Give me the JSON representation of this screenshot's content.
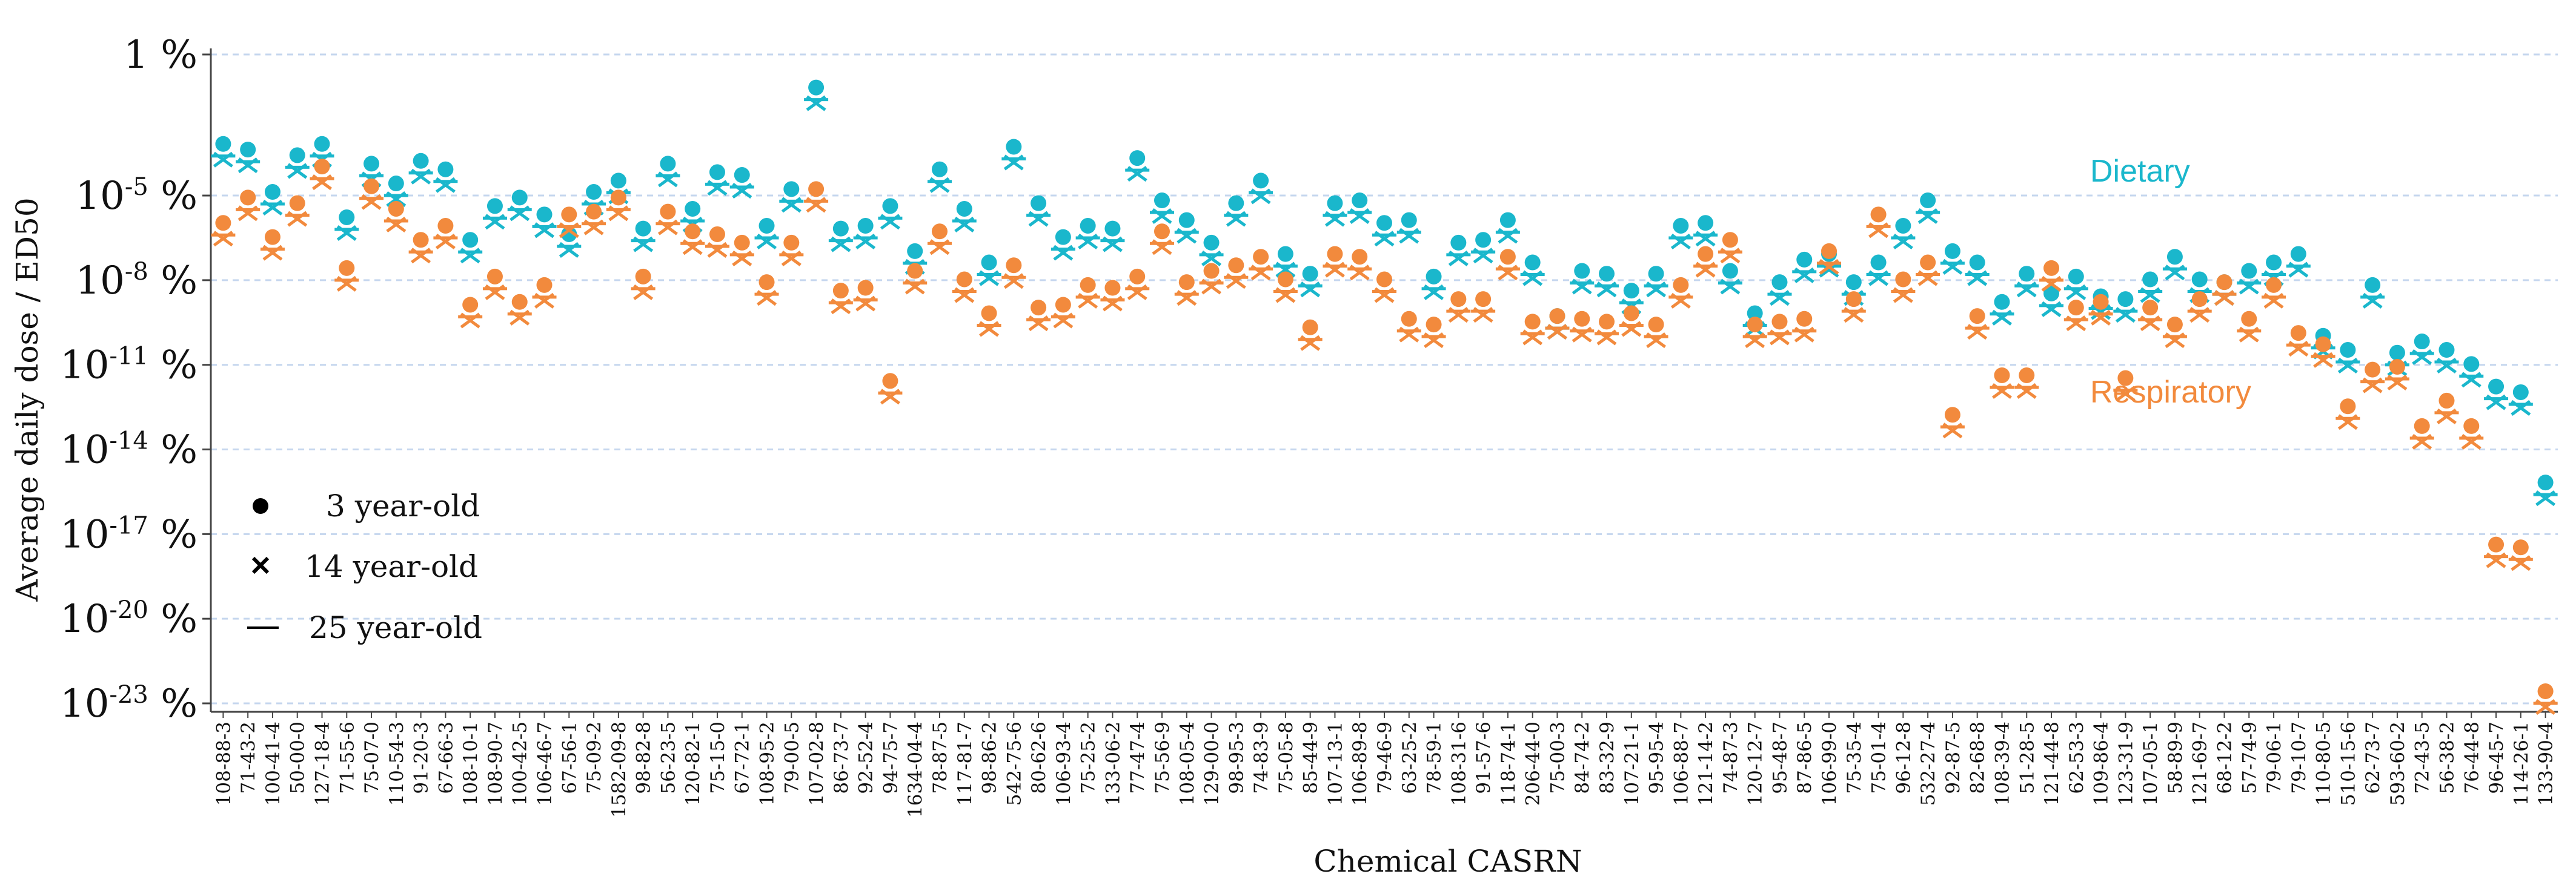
{
  "chart_data": {
    "type": "scatter",
    "title": "",
    "xlabel": "Chemical CASRN",
    "ylabel": "Average daily dose / ED50",
    "yscale": "log10",
    "ylim_exponent": [
      -23,
      0
    ],
    "y_ticks": [
      {
        "exp": 0,
        "label": "1 %"
      },
      {
        "exp": -5,
        "label": "10",
        "sup": "-5",
        "unit": " %"
      },
      {
        "exp": -8,
        "label": "10",
        "sup": "-8",
        "unit": " %"
      },
      {
        "exp": -11,
        "label": "10",
        "sup": "-11",
        "unit": " %"
      },
      {
        "exp": -14,
        "label": "10",
        "sup": "-14",
        "unit": " %"
      },
      {
        "exp": -17,
        "label": "10",
        "sup": "-17",
        "unit": " %"
      },
      {
        "exp": -20,
        "label": "10",
        "sup": "-20",
        "unit": " %"
      },
      {
        "exp": -23,
        "label": "10",
        "sup": "-23",
        "unit": " %"
      }
    ],
    "grid": "horizontal dashed",
    "categories": [
      "108-88-3",
      "71-43-2",
      "100-41-4",
      "50-00-0",
      "127-18-4",
      "71-55-6",
      "75-07-0",
      "110-54-3",
      "91-20-3",
      "67-66-3",
      "108-10-1",
      "108-90-7",
      "100-42-5",
      "106-46-7",
      "67-56-1",
      "75-09-2",
      "1582-09-8",
      "98-82-8",
      "56-23-5",
      "120-82-1",
      "75-15-0",
      "67-72-1",
      "108-95-2",
      "79-00-5",
      "107-02-8",
      "86-73-7",
      "92-52-4",
      "94-75-7",
      "1634-04-4",
      "78-87-5",
      "117-81-7",
      "98-86-2",
      "542-75-6",
      "80-62-6",
      "106-93-4",
      "75-25-2",
      "133-06-2",
      "77-47-4",
      "75-56-9",
      "108-05-4",
      "129-00-0",
      "98-95-3",
      "74-83-9",
      "75-05-8",
      "85-44-9",
      "107-13-1",
      "106-89-8",
      "79-46-9",
      "63-25-2",
      "78-59-1",
      "108-31-6",
      "91-57-6",
      "118-74-1",
      "206-44-0",
      "75-00-3",
      "84-74-2",
      "83-32-9",
      "107-21-1",
      "95-95-4",
      "106-88-7",
      "121-14-2",
      "74-87-3",
      "120-12-7",
      "95-48-7",
      "87-86-5",
      "106-99-0",
      "75-35-4",
      "75-01-4",
      "96-12-8",
      "532-27-4",
      "92-87-5",
      "82-68-8",
      "108-39-4",
      "51-28-5",
      "121-44-8",
      "62-53-3",
      "109-86-4",
      "123-31-9",
      "107-05-1",
      "58-89-9",
      "121-69-7",
      "68-12-2",
      "57-74-9",
      "79-06-1",
      "79-10-7",
      "110-80-5",
      "510-15-6",
      "62-73-7",
      "593-60-2",
      "72-43-5",
      "56-38-2",
      "76-44-8",
      "96-45-7",
      "114-26-1",
      "133-90-4"
    ],
    "series": [
      {
        "name": "Dietary",
        "color": "#1ab7cc",
        "values_log10": [
          -3.6,
          -3.8,
          -5.3,
          -4.0,
          -3.6,
          -6.2,
          -4.3,
          -5.0,
          -4.2,
          -4.5,
          -7.0,
          -5.8,
          -5.5,
          -6.1,
          -6.8,
          -5.3,
          -4.9,
          -6.6,
          -4.3,
          -5.9,
          -4.6,
          -4.7,
          -6.5,
          -5.2,
          -1.6,
          -6.6,
          -6.5,
          -5.8,
          -7.4,
          -4.5,
          -5.9,
          -7.8,
          -3.7,
          -5.7,
          -6.9,
          -6.5,
          -6.6,
          -4.1,
          -5.6,
          -6.3,
          -7.1,
          -5.7,
          -4.9,
          -7.5,
          -8.2,
          -5.7,
          -5.6,
          -6.4,
          -6.3,
          -8.3,
          -7.1,
          -7.0,
          -6.3,
          -7.8,
          -9.7,
          -8.1,
          -8.2,
          -8.8,
          -8.2,
          -6.5,
          -6.4,
          -8.1,
          -9.6,
          -8.5,
          -7.7,
          -7.5,
          -8.5,
          -7.8,
          -6.5,
          -5.6,
          -7.4,
          -7.8,
          -9.2,
          -8.2,
          -8.9,
          -8.3,
          -9.0,
          -9.1,
          -8.4,
          -7.6,
          -8.4,
          -8.5,
          -8.1,
          -7.8,
          -7.5,
          -10.4,
          -10.9,
          -8.6,
          -11.0,
          -10.6,
          -10.9,
          -11.4,
          -12.2,
          -12.4,
          -15.6
        ],
        "mark_3y": "circle",
        "mark_14y": "x",
        "mark_25y": "dash"
      },
      {
        "name": "Respiratory",
        "color": "#f28a3d",
        "values_log10": [
          -6.4,
          -5.5,
          -6.9,
          -5.7,
          -4.4,
          -8.0,
          -5.1,
          -5.9,
          -7.0,
          -6.5,
          -9.3,
          -8.3,
          -9.2,
          -8.6,
          -6.1,
          -6.0,
          -5.5,
          -8.3,
          -6.0,
          -6.7,
          -6.8,
          -7.1,
          -8.5,
          -7.1,
          -5.2,
          -8.8,
          -8.7,
          -12.0,
          -8.1,
          -6.7,
          -8.4,
          -9.6,
          -7.9,
          -9.4,
          -9.3,
          -8.6,
          -8.7,
          -8.3,
          -6.7,
          -8.5,
          -8.1,
          -7.9,
          -7.6,
          -8.4,
          -10.1,
          -7.5,
          -7.6,
          -8.4,
          -9.8,
          -10.0,
          -9.1,
          -9.1,
          -7.6,
          -9.9,
          -9.7,
          -9.8,
          -9.9,
          -9.6,
          -10.0,
          -8.6,
          -7.5,
          -7.0,
          -10.0,
          -9.9,
          -9.8,
          -7.4,
          -9.1,
          -6.1,
          -8.4,
          -7.8,
          -13.2,
          -9.7,
          -11.8,
          -11.8,
          -8.0,
          -9.4,
          -9.2,
          -11.9,
          -9.4,
          -10.0,
          -9.1,
          -8.5,
          -9.8,
          -8.6,
          -10.3,
          -10.7,
          -12.9,
          -11.6,
          -11.5,
          -13.6,
          -12.7,
          -13.6,
          -17.8,
          -17.9,
          -23.0
        ],
        "mark_3y": "circle",
        "mark_14y": "x",
        "mark_25y": "dash"
      }
    ],
    "series_labels": [
      "Dietary",
      "Respiratory"
    ],
    "legend": {
      "placement": "lower-left",
      "items": [
        {
          "marker": "circle",
          "label": "3 year-old"
        },
        {
          "marker": "x",
          "label": "14 year-old"
        },
        {
          "marker": "dash",
          "label": "25 year-old"
        }
      ]
    }
  }
}
